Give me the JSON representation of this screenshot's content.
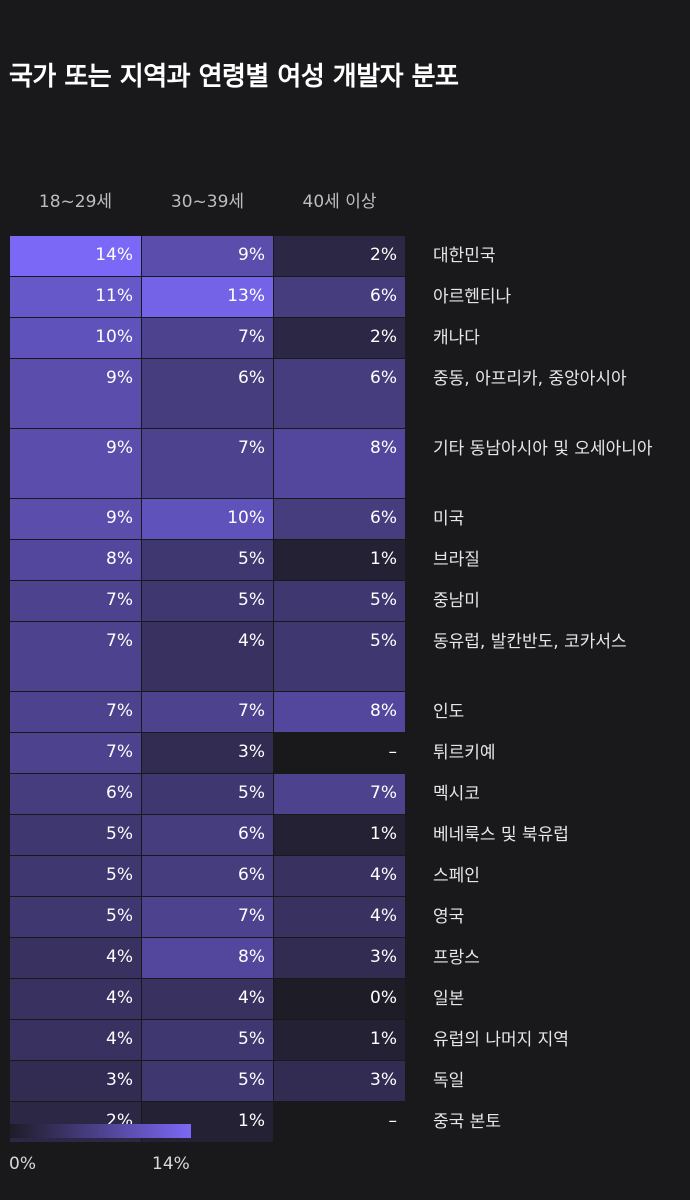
{
  "title": "국가 또는 지역과 연령별 여성 개발자 분포",
  "legend": {
    "min_label": "0%",
    "max_label": "14%"
  },
  "colors": {
    "background": "#19181b",
    "scale_low": "#1e1c26",
    "scale_high": "#7b68f6",
    "empty": "#19181b"
  },
  "chart_data": {
    "type": "heatmap",
    "title": "국가 또는 지역과 연령별 여성 개발자 분포",
    "columns": [
      "18~29세",
      "30~39세",
      "40세 이상"
    ],
    "rows": [
      {
        "label": "대한민국",
        "values": [
          14,
          9,
          2
        ],
        "display": [
          "14%",
          "9%",
          "2%"
        ]
      },
      {
        "label": "아르헨티나",
        "values": [
          11,
          13,
          6
        ],
        "display": [
          "11%",
          "13%",
          "6%"
        ]
      },
      {
        "label": "캐나다",
        "values": [
          10,
          7,
          2
        ],
        "display": [
          "10%",
          "7%",
          "2%"
        ]
      },
      {
        "label": "중동, 아프리카, 중앙아시아",
        "values": [
          9,
          6,
          6
        ],
        "display": [
          "9%",
          "6%",
          "6%"
        ]
      },
      {
        "label": "기타 동남아시아 및 오세아니아",
        "values": [
          9,
          7,
          8
        ],
        "display": [
          "9%",
          "7%",
          "8%"
        ]
      },
      {
        "label": "미국",
        "values": [
          9,
          10,
          6
        ],
        "display": [
          "9%",
          "10%",
          "6%"
        ]
      },
      {
        "label": "브라질",
        "values": [
          8,
          5,
          1
        ],
        "display": [
          "8%",
          "5%",
          "1%"
        ]
      },
      {
        "label": "중남미",
        "values": [
          7,
          5,
          5
        ],
        "display": [
          "7%",
          "5%",
          "5%"
        ]
      },
      {
        "label": "동유럽, 발칸반도, 코카서스",
        "values": [
          7,
          4,
          5
        ],
        "display": [
          "7%",
          "4%",
          "5%"
        ]
      },
      {
        "label": "인도",
        "values": [
          7,
          7,
          8
        ],
        "display": [
          "7%",
          "7%",
          "8%"
        ]
      },
      {
        "label": "튀르키예",
        "values": [
          7,
          3,
          null
        ],
        "display": [
          "7%",
          "3%",
          "–"
        ]
      },
      {
        "label": "멕시코",
        "values": [
          6,
          5,
          7
        ],
        "display": [
          "6%",
          "5%",
          "7%"
        ]
      },
      {
        "label": "베네룩스 및 북유럽",
        "values": [
          5,
          6,
          1
        ],
        "display": [
          "5%",
          "6%",
          "1%"
        ]
      },
      {
        "label": "스페인",
        "values": [
          5,
          6,
          4
        ],
        "display": [
          "5%",
          "6%",
          "4%"
        ]
      },
      {
        "label": "영국",
        "values": [
          5,
          7,
          4
        ],
        "display": [
          "5%",
          "7%",
          "4%"
        ]
      },
      {
        "label": "프랑스",
        "values": [
          4,
          8,
          3
        ],
        "display": [
          "4%",
          "8%",
          "3%"
        ]
      },
      {
        "label": "일본",
        "values": [
          4,
          4,
          0
        ],
        "display": [
          "4%",
          "4%",
          "0%"
        ]
      },
      {
        "label": "유럽의 나머지 지역",
        "values": [
          4,
          5,
          1
        ],
        "display": [
          "4%",
          "5%",
          "1%"
        ]
      },
      {
        "label": "독일",
        "values": [
          3,
          5,
          3
        ],
        "display": [
          "3%",
          "5%",
          "3%"
        ]
      },
      {
        "label": "중국 본토",
        "values": [
          2,
          1,
          null
        ],
        "display": [
          "2%",
          "1%",
          "–"
        ]
      }
    ],
    "scale_range": [
      0,
      14
    ]
  }
}
